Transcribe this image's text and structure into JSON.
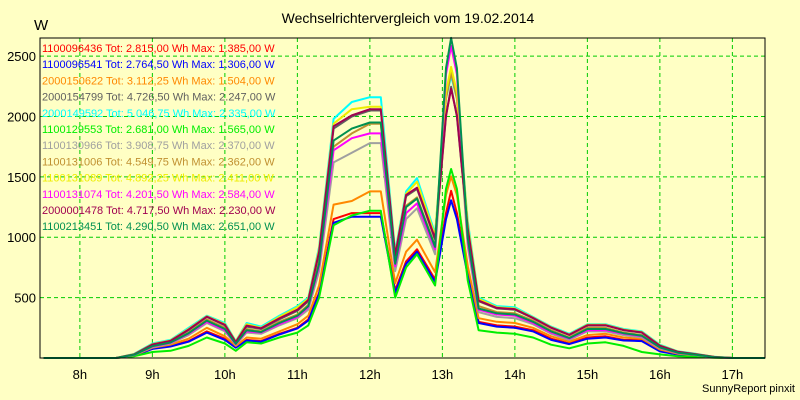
{
  "chart_data": {
    "type": "line",
    "title": "Wechselrichtervergleich vom 19.02.2014",
    "ylabel": "W",
    "xlabel": "",
    "ylim": [
      0,
      2650
    ],
    "xlim": [
      7.45,
      17.45
    ],
    "yticks": [
      500,
      1000,
      1500,
      2000,
      2500
    ],
    "xticks": [
      {
        "label": "8h",
        "x": 8.0
      },
      {
        "label": "9h",
        "x": 9.0
      },
      {
        "label": "10h",
        "x": 10.0
      },
      {
        "label": "11h",
        "x": 11.0
      },
      {
        "label": "12h",
        "x": 12.0
      },
      {
        "label": "13h",
        "x": 13.0
      },
      {
        "label": "14h",
        "x": 14.0
      },
      {
        "label": "15h",
        "x": 15.0
      },
      {
        "label": "16h",
        "x": 16.0
      },
      {
        "label": "17h",
        "x": 17.0
      }
    ],
    "grid": true,
    "footer": "SunnyReport pinxit",
    "x": [
      7.5,
      7.75,
      8.0,
      8.25,
      8.5,
      8.75,
      9.0,
      9.25,
      9.5,
      9.75,
      10.0,
      10.15,
      10.3,
      10.5,
      10.75,
      11.0,
      11.15,
      11.3,
      11.5,
      11.75,
      12.0,
      12.15,
      12.35,
      12.5,
      12.65,
      12.9,
      13.05,
      13.12,
      13.2,
      13.35,
      13.5,
      13.75,
      14.0,
      14.25,
      14.5,
      14.75,
      15.0,
      15.25,
      15.5,
      15.75,
      16.0,
      16.25,
      16.5,
      16.75,
      17.0,
      17.45
    ],
    "series": [
      {
        "name": "1100096436",
        "color": "#ff0000",
        "legend": "1100096436 Tot: 2.815,00 Wh Max: 1.385,00 W",
        "values": [
          0,
          0,
          0,
          0,
          0,
          20,
          80,
          100,
          140,
          220,
          160,
          90,
          150,
          140,
          200,
          250,
          320,
          540,
          1150,
          1200,
          1200,
          1200,
          560,
          800,
          900,
          650,
          1200,
          1385,
          1200,
          700,
          300,
          270,
          260,
          230,
          160,
          120,
          170,
          180,
          150,
          150,
          60,
          30,
          20,
          5,
          0,
          0
        ]
      },
      {
        "name": "1100096541",
        "color": "#0000ff",
        "legend": "1100096541 Tot: 2.764,50 Wh Max: 1.306,00 W",
        "values": [
          0,
          0,
          0,
          0,
          0,
          18,
          75,
          95,
          135,
          210,
          150,
          85,
          145,
          135,
          195,
          245,
          310,
          530,
          1120,
          1170,
          1170,
          1170,
          540,
          780,
          880,
          630,
          1150,
          1306,
          1150,
          680,
          290,
          260,
          250,
          220,
          150,
          115,
          160,
          170,
          145,
          140,
          55,
          28,
          18,
          4,
          0,
          0
        ]
      },
      {
        "name": "2000150622",
        "color": "#ff8800",
        "legend": "2000150622 Tot: 3.112,25 Wh Max: 1.504,00 W",
        "values": [
          0,
          0,
          0,
          0,
          0,
          22,
          85,
          110,
          160,
          250,
          180,
          100,
          170,
          160,
          220,
          280,
          350,
          600,
          1270,
          1300,
          1380,
          1380,
          620,
          880,
          980,
          710,
          1350,
          1504,
          1350,
          760,
          330,
          300,
          290,
          250,
          180,
          135,
          190,
          200,
          170,
          160,
          70,
          35,
          22,
          6,
          0,
          0
        ]
      },
      {
        "name": "2000154799",
        "color": "#606060",
        "legend": "2000154799 Tot: 4.726,50 Wh Max: 2.247,00 W",
        "values": [
          0,
          0,
          0,
          0,
          0,
          30,
          110,
          140,
          230,
          340,
          270,
          130,
          260,
          240,
          320,
          390,
          470,
          870,
          1900,
          2000,
          2050,
          2050,
          840,
          1340,
          1400,
          980,
          2000,
          2247,
          2000,
          1060,
          470,
          410,
          400,
          330,
          250,
          190,
          270,
          270,
          230,
          210,
          100,
          50,
          30,
          8,
          0,
          0
        ]
      },
      {
        "name": "2000149592",
        "color": "#00ffff",
        "legend": "2000149592 Tot: 5.046,75 Wh Max: 2.335,00 W",
        "values": [
          0,
          0,
          0,
          0,
          0,
          35,
          120,
          150,
          250,
          350,
          290,
          140,
          290,
          260,
          350,
          430,
          500,
          920,
          1980,
          2120,
          2160,
          2160,
          880,
          1380,
          1490,
          1030,
          2150,
          2335,
          2150,
          1130,
          500,
          430,
          420,
          340,
          260,
          200,
          280,
          280,
          240,
          220,
          110,
          55,
          35,
          10,
          0,
          0
        ]
      },
      {
        "name": "1100129553",
        "color": "#00ee00",
        "legend": "1100129553 Tot: 2.681,00 Wh Max: 1.565,00 W",
        "values": [
          0,
          0,
          0,
          0,
          0,
          15,
          50,
          60,
          100,
          170,
          120,
          60,
          130,
          120,
          170,
          210,
          270,
          500,
          1100,
          1180,
          1220,
          1220,
          500,
          750,
          860,
          600,
          1400,
          1565,
          1400,
          640,
          230,
          210,
          200,
          170,
          110,
          80,
          120,
          130,
          100,
          50,
          30,
          15,
          10,
          2,
          0,
          0
        ]
      },
      {
        "name": "1100130966",
        "color": "#a0a0a0",
        "legend": "1100130966 Tot: 3.908,75 Wh Max: 2.370,00 W",
        "values": [
          0,
          0,
          0,
          0,
          0,
          25,
          90,
          120,
          190,
          290,
          220,
          110,
          210,
          200,
          270,
          330,
          400,
          720,
          1620,
          1700,
          1780,
          1780,
          720,
          1150,
          1240,
          860,
          2200,
          2370,
          2200,
          920,
          380,
          340,
          330,
          280,
          200,
          150,
          220,
          220,
          190,
          170,
          80,
          40,
          25,
          7,
          0,
          0
        ]
      },
      {
        "name": "1100131006",
        "color": "#c09030",
        "legend": "1100131006 Tot: 4.549,75 Wh Max: 2.362,00 W",
        "values": [
          0,
          0,
          0,
          0,
          0,
          28,
          100,
          130,
          210,
          320,
          250,
          120,
          240,
          220,
          300,
          360,
          440,
          800,
          1750,
          1860,
          1940,
          1940,
          790,
          1260,
          1330,
          930,
          2150,
          2362,
          2150,
          1000,
          430,
          380,
          370,
          310,
          230,
          170,
          250,
          250,
          210,
          190,
          90,
          45,
          28,
          7,
          0,
          0
        ]
      },
      {
        "name": "1100131089",
        "color": "#eeee00",
        "legend": "1100131089 Tot: 4.892,25 Wh Max: 2.411,00 W",
        "values": [
          0,
          0,
          0,
          0,
          0,
          32,
          115,
          145,
          240,
          345,
          280,
          135,
          280,
          250,
          340,
          420,
          490,
          900,
          1940,
          2060,
          2080,
          2080,
          860,
          1360,
          1460,
          1010,
          2200,
          2411,
          2200,
          1100,
          490,
          420,
          410,
          335,
          255,
          195,
          275,
          275,
          235,
          215,
          105,
          52,
          32,
          9,
          0,
          0
        ]
      },
      {
        "name": "1100131074",
        "color": "#ff00ff",
        "legend": "1100131074 Tot: 4.201,50 Wh Max: 2.584,00 W",
        "values": [
          0,
          0,
          0,
          0,
          0,
          26,
          95,
          125,
          200,
          300,
          230,
          115,
          220,
          210,
          280,
          340,
          420,
          760,
          1720,
          1820,
          1860,
          1860,
          760,
          1200,
          1280,
          900,
          2350,
          2584,
          2350,
          960,
          400,
          360,
          350,
          290,
          210,
          160,
          230,
          230,
          200,
          180,
          85,
          42,
          26,
          7,
          0,
          0
        ]
      },
      {
        "name": "2000001478",
        "color": "#a00050",
        "legend": "2000001478 Tot: 4.717,50 Wh Max: 2.230,00 W",
        "values": [
          0,
          0,
          0,
          0,
          0,
          31,
          112,
          142,
          235,
          342,
          275,
          132,
          268,
          246,
          328,
          400,
          480,
          880,
          1920,
          2010,
          2060,
          2060,
          850,
          1350,
          1410,
          990,
          2010,
          2230,
          2010,
          1070,
          475,
          415,
          405,
          332,
          252,
          192,
          272,
          272,
          232,
          212,
          102,
          51,
          31,
          9,
          0,
          0
        ]
      },
      {
        "name": "1100213451",
        "color": "#009050",
        "legend": "1100213451 Tot: 4.290,50 Wh Max: 2.651,00 W",
        "values": [
          0,
          0,
          0,
          0,
          0,
          27,
          98,
          128,
          205,
          310,
          240,
          118,
          230,
          215,
          290,
          350,
          430,
          780,
          1800,
          1900,
          1950,
          1950,
          780,
          1250,
          1320,
          920,
          2400,
          2651,
          2400,
          990,
          410,
          370,
          360,
          300,
          220,
          165,
          240,
          240,
          205,
          185,
          88,
          44,
          27,
          7,
          0,
          0
        ]
      }
    ]
  }
}
